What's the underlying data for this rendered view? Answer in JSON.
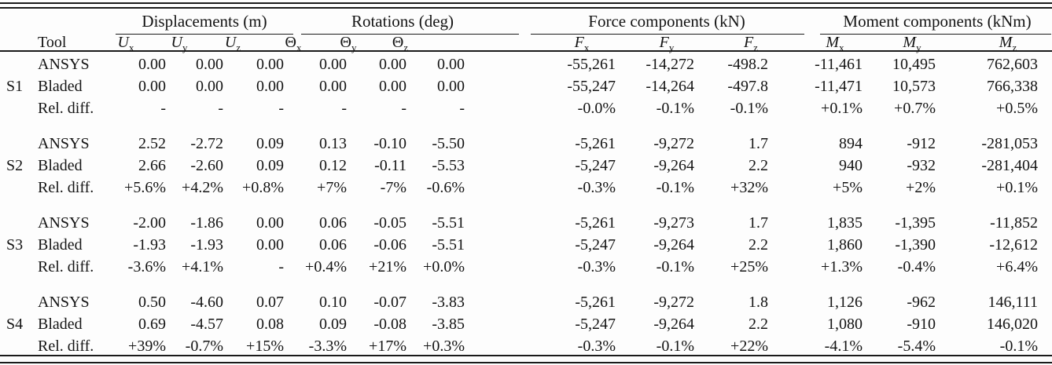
{
  "table": {
    "corner_tool_label": "Tool",
    "groups": [
      {
        "label": "Displacements (m)",
        "columns": [
          {
            "sym": "U",
            "sub": "x"
          },
          {
            "sym": "U",
            "sub": "y"
          },
          {
            "sym": "U",
            "sub": "z"
          }
        ]
      },
      {
        "label": "Rotations (deg)",
        "columns": [
          {
            "sym": "Θ",
            "sub": "x"
          },
          {
            "sym": "Θ",
            "sub": "y"
          },
          {
            "sym": "Θ",
            "sub": "z"
          }
        ]
      },
      {
        "label": "Force components (kN)",
        "columns": [
          {
            "sym": "F",
            "sub": "x"
          },
          {
            "sym": "F",
            "sub": "y"
          },
          {
            "sym": "F",
            "sub": "z"
          }
        ]
      },
      {
        "label": "Moment components (kNm)",
        "columns": [
          {
            "sym": "M",
            "sub": "x"
          },
          {
            "sym": "M",
            "sub": "y"
          },
          {
            "sym": "M",
            "sub": "z"
          }
        ]
      }
    ],
    "sections": [
      {
        "id": "S1",
        "rows": [
          {
            "tool": "ANSYS",
            "values": [
              "0.00",
              "0.00",
              "0.00",
              "0.00",
              "0.00",
              "0.00",
              "-55,261",
              "-14,272",
              "-498.2",
              "-11,461",
              "10,495",
              "762,603"
            ]
          },
          {
            "tool": "Bladed",
            "values": [
              "0.00",
              "0.00",
              "0.00",
              "0.00",
              "0.00",
              "0.00",
              "-55,247",
              "-14,264",
              "-497.8",
              "-11,471",
              "10,573",
              "766,338"
            ]
          },
          {
            "tool": "Rel. diff.",
            "values": [
              "-",
              "-",
              "-",
              "-",
              "-",
              "-",
              "-0.0%",
              "-0.1%",
              "-0.1%",
              "+0.1%",
              "+0.7%",
              "+0.5%"
            ]
          }
        ]
      },
      {
        "id": "S2",
        "rows": [
          {
            "tool": "ANSYS",
            "values": [
              "2.52",
              "-2.72",
              "0.09",
              "0.13",
              "-0.10",
              "-5.50",
              "-5,261",
              "-9,272",
              "1.7",
              "894",
              "-912",
              "-281,053"
            ]
          },
          {
            "tool": "Bladed",
            "values": [
              "2.66",
              "-2.60",
              "0.09",
              "0.12",
              "-0.11",
              "-5.53",
              "-5,247",
              "-9,264",
              "2.2",
              "940",
              "-932",
              "-281,404"
            ]
          },
          {
            "tool": "Rel. diff.",
            "values": [
              "+5.6%",
              "+4.2%",
              "+0.8%",
              "+7%",
              "-7%",
              "-0.6%",
              "-0.3%",
              "-0.1%",
              "+32%",
              "+5%",
              "+2%",
              "+0.1%"
            ]
          }
        ]
      },
      {
        "id": "S3",
        "rows": [
          {
            "tool": "ANSYS",
            "values": [
              "-2.00",
              "-1.86",
              "0.00",
              "0.06",
              "-0.05",
              "-5.51",
              "-5,261",
              "-9,273",
              "1.7",
              "1,835",
              "-1,395",
              "-11,852"
            ]
          },
          {
            "tool": "Bladed",
            "values": [
              "-1.93",
              "-1.93",
              "0.00",
              "0.06",
              "-0.06",
              "-5.51",
              "-5,247",
              "-9,264",
              "2.2",
              "1,860",
              "-1,390",
              "-12,612"
            ]
          },
          {
            "tool": "Rel. diff.",
            "values": [
              "-3.6%",
              "+4.1%",
              "-",
              "+0.4%",
              "+21%",
              "+0.0%",
              "-0.3%",
              "-0.1%",
              "+25%",
              "+1.3%",
              "-0.4%",
              "+6.4%"
            ]
          }
        ]
      },
      {
        "id": "S4",
        "rows": [
          {
            "tool": "ANSYS",
            "values": [
              "0.50",
              "-4.60",
              "0.07",
              "0.10",
              "-0.07",
              "-3.83",
              "-5,261",
              "-9,272",
              "1.8",
              "1,126",
              "-962",
              "146,111"
            ]
          },
          {
            "tool": "Bladed",
            "values": [
              "0.69",
              "-4.57",
              "0.08",
              "0.09",
              "-0.08",
              "-3.85",
              "-5,247",
              "-9,264",
              "2.2",
              "1,080",
              "-910",
              "146,020"
            ]
          },
          {
            "tool": "Rel. diff.",
            "values": [
              "+39%",
              "-0.7%",
              "+15%",
              "-3.3%",
              "+17%",
              "+0.3%",
              "-0.3%",
              "-0.1%",
              "+22%",
              "-4.1%",
              "-5.4%",
              "-0.1%"
            ]
          }
        ]
      }
    ]
  }
}
